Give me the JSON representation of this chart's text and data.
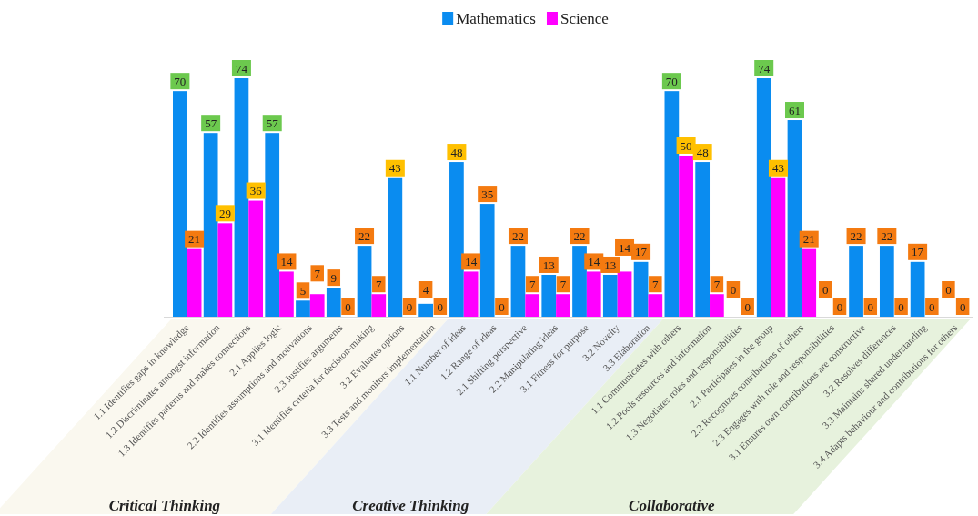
{
  "chart_data": {
    "type": "bar",
    "categories": [
      "1.1 Identifies gaps in knowledge",
      "1.2 Discriminates amongst information",
      "1.3 Identifies patterns and makes connections",
      "2.1 Applies logic",
      "2.2 Identifies assumptions and motivations",
      "2.3 Justifies arguments",
      "3.1 Identifies criteria for decision-making",
      "3.2 Evaluates options",
      "3.3 Tests and monitors implementation",
      "1.1 Number of ideas",
      "1.2 Range of ideas",
      "2.1 Shifting perspective",
      "2.2 Manipulating ideas",
      "3.1 Fitness for purpose",
      "3.2 Novelty",
      "3.3 Elaboration",
      "1.1 Communicates with others",
      "1.2 Pools resources and information",
      "1.3 Negotiates roles and responsibilities",
      "2.1 Participates in the group",
      "2.2 Recognizes contributions of others",
      "2.3 Engages with role and responsibilities",
      "3.1 Ensures own contributions are constructive",
      "3.2 Resolves differences",
      "3.3 Maintains shared understanding",
      "3.4 Adapts behaviour and contributions for others"
    ],
    "series": [
      {
        "name": "Mathematics",
        "color": "#0a8cf0",
        "values": [
          70,
          57,
          74,
          57,
          5,
          9,
          22,
          43,
          4,
          48,
          35,
          22,
          13,
          22,
          13,
          17,
          70,
          48,
          0,
          74,
          61,
          0,
          22,
          22,
          17,
          0
        ]
      },
      {
        "name": "Science",
        "color": "#ff00ff",
        "values": [
          21,
          29,
          36,
          14,
          7,
          0,
          7,
          0,
          0,
          14,
          0,
          7,
          7,
          14,
          14,
          7,
          50,
          7,
          0,
          43,
          21,
          0,
          0,
          0,
          0,
          0
        ]
      }
    ],
    "data_labels": true,
    "legend": "top",
    "annotations": [
      "Critical Thinking",
      "Creative Thinking",
      "Collaborative"
    ]
  }
}
